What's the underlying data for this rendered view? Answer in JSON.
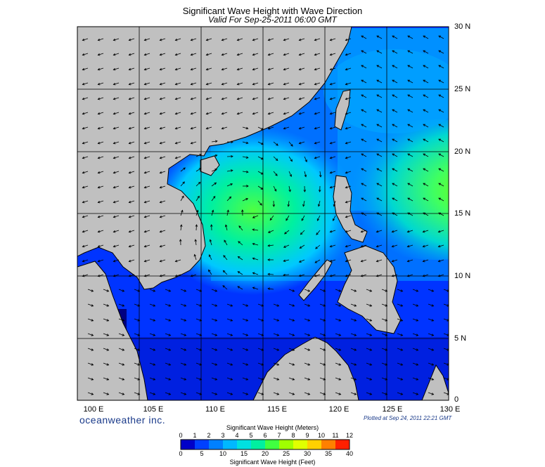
{
  "title": "Significant Wave Height with Wave Direction",
  "subtitle": "Valid For Sep-25-2011 06:00 GMT",
  "lat_labels": [
    "30 N",
    "25 N",
    "20 N",
    "15 N",
    "10 N",
    "5 N",
    "0"
  ],
  "lon_labels": [
    "100 E",
    "105 E",
    "110 E",
    "115 E",
    "120 E",
    "125 E",
    "130 E"
  ],
  "brand": "oceanweather inc.",
  "plotted": "Plotted at Sep 24, 2011 22:21 GMT",
  "colorbar": {
    "title_meters": "Significant Wave Height (Meters)",
    "title_feet": "Significant Wave Height (Feet)",
    "meter_ticks": [
      "0",
      "1",
      "2",
      "3",
      "4",
      "5",
      "6",
      "7",
      "8",
      "9",
      "10",
      "11",
      "12"
    ],
    "feet_ticks": [
      "0",
      "5",
      "10",
      "15",
      "20",
      "25",
      "30",
      "35",
      "40"
    ],
    "colors": [
      "#0000c8",
      "#0040ff",
      "#0080ff",
      "#00b8ff",
      "#00e0e0",
      "#00f0a0",
      "#40ff40",
      "#a0ff00",
      "#e0ff00",
      "#ffd000",
      "#ff8000",
      "#ff2000"
    ]
  },
  "colors": {
    "land": "#c0c0c0",
    "sea_low": "#0028ff",
    "sea_mid": "#00b0ff",
    "sea_high": "#40ff60",
    "grid": "#000000"
  }
}
